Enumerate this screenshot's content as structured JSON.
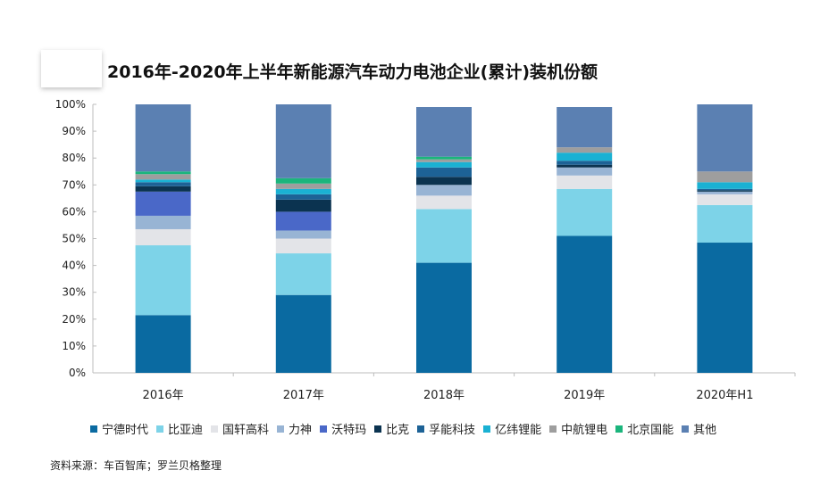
{
  "page": {
    "title": "2016年-2020年上半年新能源汽车动力电池企业(累计)装机份额",
    "source": "资料来源：车百智库；罗兰贝格整理"
  },
  "chart_data": {
    "type": "bar",
    "stacked": true,
    "title": "2016年-2020年上半年新能源汽车动力电池企业(累计)装机份额",
    "categories": [
      "2016年",
      "2017年",
      "2018年",
      "2019年",
      "2020年H1"
    ],
    "ylim": [
      0,
      100
    ],
    "yticks": [
      0,
      10,
      20,
      30,
      40,
      50,
      60,
      70,
      80,
      90,
      100
    ],
    "ytick_labels": [
      "0%",
      "10%",
      "20%",
      "30%",
      "40%",
      "50%",
      "60%",
      "70%",
      "80%",
      "90%",
      "100%"
    ],
    "legend_position": "bottom",
    "grid": false,
    "series": [
      {
        "name": "宁德时代",
        "color": "#0a6aa1",
        "values": [
          21.5,
          29.0,
          41.0,
          51.0,
          48.5
        ]
      },
      {
        "name": "比亚迪",
        "color": "#7dd3e8",
        "values": [
          26.0,
          15.5,
          20.0,
          17.5,
          14.0
        ]
      },
      {
        "name": "国轩高科",
        "color": "#e3e4e8",
        "values": [
          6.0,
          5.5,
          5.0,
          5.0,
          4.0
        ]
      },
      {
        "name": "力神",
        "color": "#98b4d4",
        "values": [
          5.0,
          3.0,
          4.0,
          3.0,
          1.0
        ]
      },
      {
        "name": "沃特玛",
        "color": "#4a68c8",
        "values": [
          9.0,
          7.0,
          0.0,
          0.0,
          0.0
        ]
      },
      {
        "name": "比克",
        "color": "#0b3350",
        "values": [
          2.0,
          4.5,
          3.0,
          1.0,
          0.5
        ]
      },
      {
        "name": "孚能科技",
        "color": "#1d6296",
        "values": [
          1.5,
          2.0,
          3.5,
          1.5,
          0.5
        ]
      },
      {
        "name": "亿纬锂能",
        "color": "#1ab1d3",
        "values": [
          1.0,
          2.0,
          2.0,
          3.0,
          2.5
        ]
      },
      {
        "name": "中航锂电",
        "color": "#9e9e9e",
        "values": [
          2.0,
          2.0,
          1.0,
          2.0,
          4.0
        ]
      },
      {
        "name": "北京国能",
        "color": "#1bb57c",
        "values": [
          1.0,
          2.0,
          1.0,
          0.0,
          0.0
        ]
      },
      {
        "name": "其他",
        "color": "#5b80b2",
        "values": [
          25.0,
          27.5,
          18.5,
          15.0,
          25.0
        ]
      }
    ]
  }
}
